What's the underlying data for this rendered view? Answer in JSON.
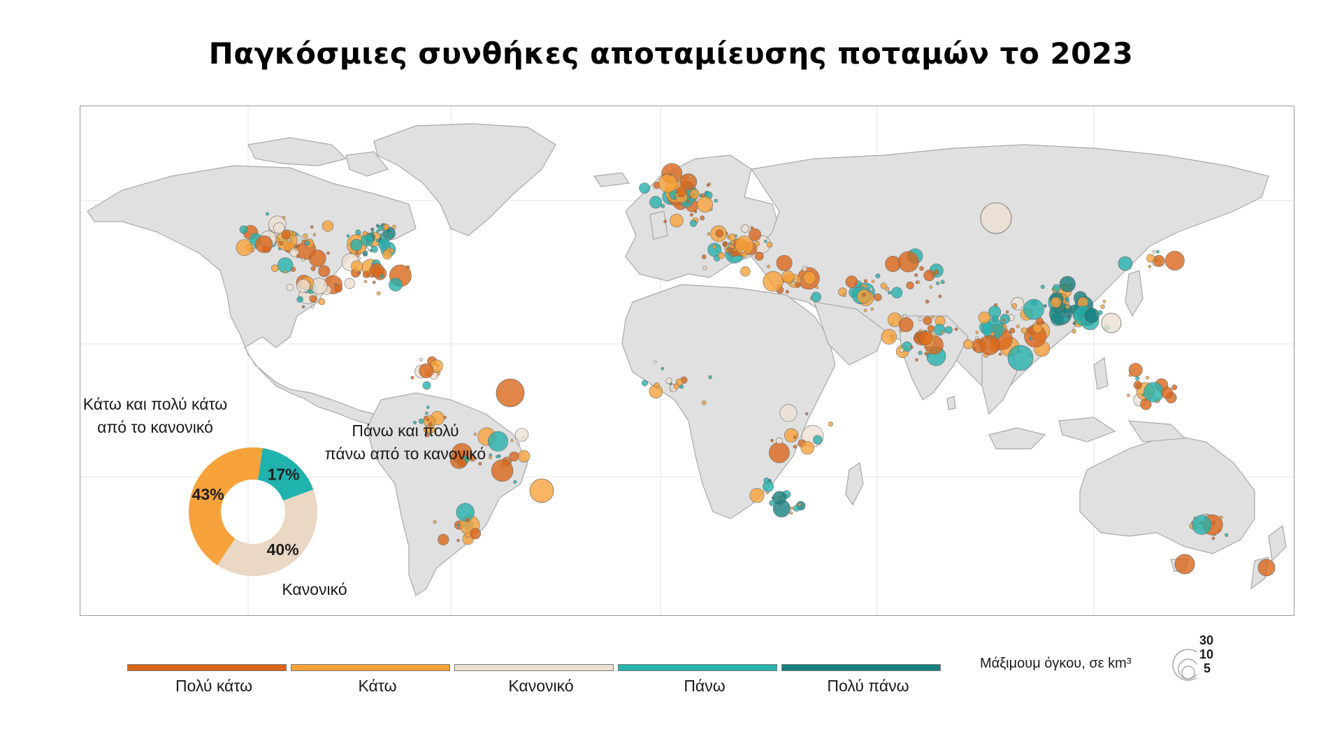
{
  "title": "Παγκόσμιες συνθήκες αποταμίευσης ποταμών το 2023",
  "donut": {
    "label_below": "Κάτω και πολύ κάτω από το κανονικό",
    "label_below_line1": "Κάτω και πολύ κάτω",
    "label_below_line2": "από το κανονικό",
    "label_above_line1": "Πάνω και πολύ",
    "label_above_line2": "πάνω από το κανονικό",
    "label_normal": "Κανονικό",
    "segments": [
      {
        "category": "below",
        "value": 43,
        "label": "43%",
        "color": "#f7a23a"
      },
      {
        "category": "normal",
        "value": 40,
        "label": "40%",
        "color": "#ead7c4"
      },
      {
        "category": "above",
        "value": 17,
        "label": "17%",
        "color": "#20b2ad"
      }
    ]
  },
  "legend": {
    "items": [
      {
        "label": "Πολύ κάτω",
        "color": "#d9661a"
      },
      {
        "label": "Κάτω",
        "color": "#f7a23a"
      },
      {
        "label": "Κανονικό",
        "color": "#ece0d3"
      },
      {
        "label": "Πάνω",
        "color": "#27b2ae"
      },
      {
        "label": "Πολύ πάνω",
        "color": "#16807f"
      }
    ]
  },
  "size_legend": {
    "title": "Μάξιμουμ όγκου, σε km³",
    "values": [
      "30",
      "10",
      "5"
    ]
  },
  "colors": {
    "land": "#e0e0e0",
    "border": "#a9a9a9",
    "ocean": "#ffffff"
  }
}
